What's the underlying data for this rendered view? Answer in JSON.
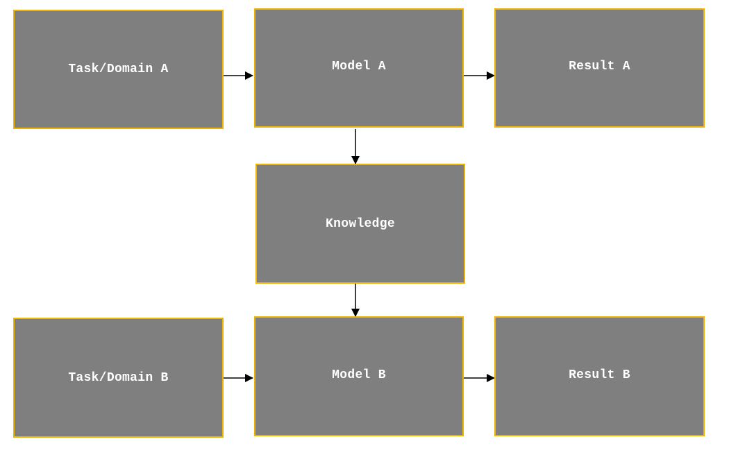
{
  "diagram": {
    "colors": {
      "node_fill": "#7f7f7f",
      "node_border": "#f0b400",
      "label_color": "#ffffff",
      "edge_color": "#000000"
    },
    "nodes": {
      "task_a": "Task/Domain A",
      "model_a": "Model A",
      "result_a": "Result A",
      "knowledge": "Knowledge",
      "task_b": "Task/Domain B",
      "model_b": "Model B",
      "result_b": "Result B"
    },
    "edges": [
      {
        "from": "task_a",
        "to": "model_a"
      },
      {
        "from": "model_a",
        "to": "result_a"
      },
      {
        "from": "model_a",
        "to": "knowledge"
      },
      {
        "from": "knowledge",
        "to": "model_b"
      },
      {
        "from": "task_b",
        "to": "model_b"
      },
      {
        "from": "model_b",
        "to": "result_b"
      }
    ]
  }
}
